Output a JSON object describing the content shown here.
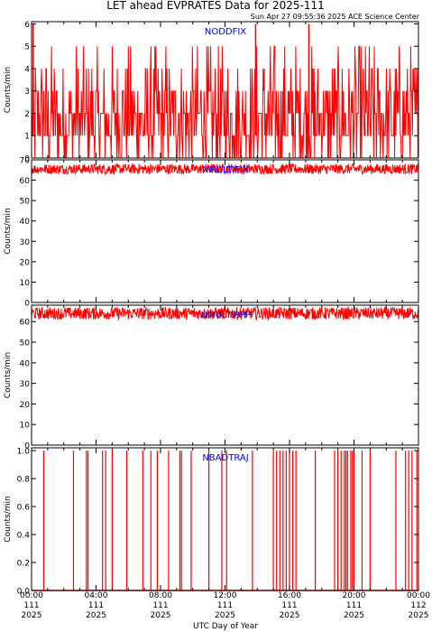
{
  "header": {
    "title": "LET ahead EVPRATES Data for 2025-111",
    "timestamp": "Sun Apr 27 09:55:36 2025 ACE Science Center"
  },
  "xaxis": {
    "label": "UTC Day of Year",
    "ticks": [
      {
        "t": "00:00",
        "doy": "111",
        "year": "2025"
      },
      {
        "t": "04:00",
        "doy": "111",
        "year": "2025"
      },
      {
        "t": "08:00",
        "doy": "111",
        "year": "2025"
      },
      {
        "t": "12:00",
        "doy": "111",
        "year": "2025"
      },
      {
        "t": "16:00",
        "doy": "111",
        "year": "2025"
      },
      {
        "t": "20:00",
        "doy": "111",
        "year": "2025"
      },
      {
        "t": "00:00",
        "doy": "112",
        "year": "2025"
      }
    ]
  },
  "colors": {
    "trace": "#ff0000",
    "label": "#0000ff",
    "axes": "#000000"
  },
  "chart_data": [
    {
      "type": "line",
      "panel_label": "NODDFIX",
      "ylabel": "Counts/min",
      "ylim": [
        0,
        6.1
      ],
      "yticks": [
        "0",
        "1",
        "2",
        "3",
        "4",
        "5",
        "6"
      ],
      "x_range_hours": [
        0,
        24
      ],
      "spike_points": [
        {
          "x": 0.1,
          "y": 6.0
        },
        {
          "x": 13.9,
          "y": 6.0
        },
        {
          "x": 17.2,
          "y": 6.0
        }
      ],
      "series": [
        {
          "values_description": "",
          "baseline": [
            1,
            3
          ],
          "frequent_peaks": [
            4,
            5
          ],
          "frequent_dips": 0
        }
      ]
    },
    {
      "type": "line",
      "panel_label": "NMULTIFIX",
      "ylabel": "Counts/min",
      "ylim": [
        0,
        70
      ],
      "yticks": [
        "0",
        "10",
        "20",
        "30",
        "40",
        "50",
        "60",
        "70"
      ],
      "x_range_hours": [
        0,
        24
      ],
      "series": [
        {
          "band": [
            63,
            68
          ]
        }
      ]
    },
    {
      "type": "line",
      "panel_label": "NMULTIPPP",
      "ylabel": "Counts/min",
      "ylim": [
        0,
        68
      ],
      "yticks": [
        "0",
        "10",
        "20",
        "30",
        "40",
        "50",
        "60"
      ],
      "x_range_hours": [
        0,
        24
      ],
      "series": [
        {
          "band": [
            61,
            67
          ]
        }
      ]
    },
    {
      "type": "line",
      "panel_label": "NBADTRAJ",
      "ylabel": "Counts/min",
      "ylim": [
        0,
        1.02
      ],
      "yticks": [
        "0.0",
        "0.2",
        "0.4",
        "0.6",
        "0.8",
        "1.0"
      ],
      "x_range_hours": [
        0,
        24
      ],
      "series": [
        {
          "spike_hours": [
            0.75,
            2.6,
            3.4,
            3.5,
            4.4,
            4.6,
            5.0,
            5.9,
            6.9,
            7.4,
            7.8,
            8.5,
            9.2,
            9.3,
            9.9,
            11.0,
            11.8,
            12.1,
            13.7,
            15.0,
            15.2,
            15.4,
            15.6,
            15.8,
            16.0,
            16.2,
            16.4,
            17.6,
            18.8,
            19.0,
            19.2,
            19.4,
            19.5,
            19.6,
            19.8,
            19.9,
            20.0,
            20.5,
            21.0,
            22.6,
            23.2,
            23.4,
            23.6,
            23.9
          ]
        }
      ]
    }
  ]
}
